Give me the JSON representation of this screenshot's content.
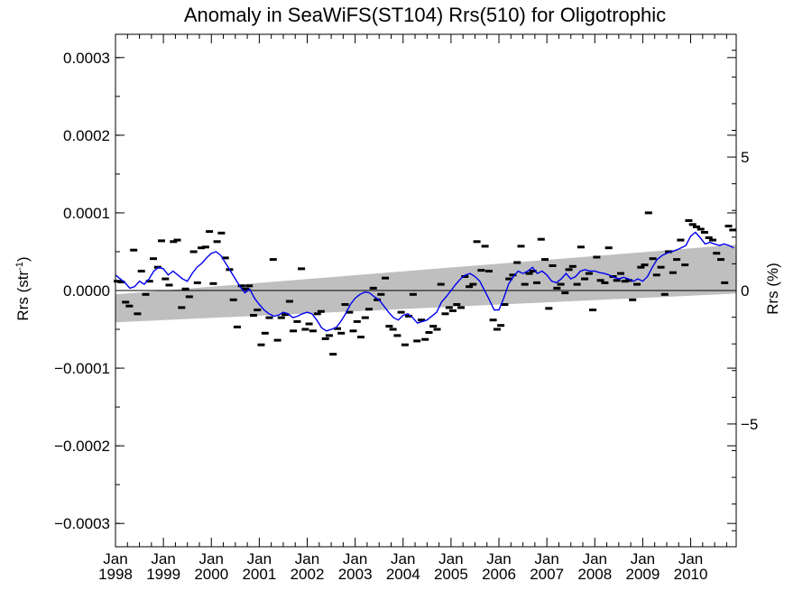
{
  "chart_data": {
    "type": "scatter",
    "title": "Anomaly in SeaWiFS(ST104) Rrs(510) for Oligotrophic",
    "ylabel_left": {
      "base": "Rrs (str",
      "sup": "-1",
      "tail": ")"
    },
    "ylabel_right": "Rrs (%)",
    "x_range": [
      1998.0,
      2010.95
    ],
    "y_range": [
      -0.00033,
      0.00033
    ],
    "y2_range": [
      -9.6,
      9.6
    ],
    "y_ticks": [
      {
        "value": 0.0003,
        "label": "0.0003"
      },
      {
        "value": 0.0002,
        "label": "0.0002"
      },
      {
        "value": 0.0001,
        "label": "0.0001"
      },
      {
        "value": 0.0,
        "label": "0.0000"
      },
      {
        "value": -0.0001,
        "label": "−0.0001"
      },
      {
        "value": -0.0002,
        "label": "−0.0002"
      },
      {
        "value": -0.0003,
        "label": "−0.0003"
      }
    ],
    "y2_ticks": [
      {
        "value": 5,
        "label": "5"
      },
      {
        "value": 0,
        "label": "0"
      },
      {
        "value": -5,
        "label": "−5"
      }
    ],
    "x_ticks": [
      {
        "value": 1998,
        "month": "Jan",
        "year": "1998"
      },
      {
        "value": 1999,
        "month": "Jan",
        "year": "1999"
      },
      {
        "value": 2000,
        "month": "Jan",
        "year": "2000"
      },
      {
        "value": 2001,
        "month": "Jan",
        "year": "2001"
      },
      {
        "value": 2002,
        "month": "Jan",
        "year": "2002"
      },
      {
        "value": 2003,
        "month": "Jan",
        "year": "2003"
      },
      {
        "value": 2004,
        "month": "Jan",
        "year": "2004"
      },
      {
        "value": 2005,
        "month": "Jan",
        "year": "2005"
      },
      {
        "value": 2006,
        "month": "Jan",
        "year": "2006"
      },
      {
        "value": 2007,
        "month": "Jan",
        "year": "2007"
      },
      {
        "value": 2008,
        "month": "Jan",
        "year": "2008"
      },
      {
        "value": 2009,
        "month": "Jan",
        "year": "2009"
      },
      {
        "value": 2010,
        "month": "Jan",
        "year": "2010"
      }
    ],
    "colors": {
      "points": "#000000",
      "running_mean": "#0000ee",
      "trend_band": "#bfbfbf",
      "zero_line": "#000000"
    },
    "trend_band": {
      "x": [
        1998.0,
        2010.95
      ],
      "lower": [
        -4.1e-05,
        -4e-06
      ],
      "upper": [
        -5e-06,
        5.9e-05
      ]
    },
    "points": [
      [
        1998.04,
        1.2e-05
      ],
      [
        1998.12,
        1.1e-05
      ],
      [
        1998.21,
        -1.5e-05
      ],
      [
        1998.29,
        -2e-05
      ],
      [
        1998.38,
        5.2e-05
      ],
      [
        1998.46,
        -3e-05
      ],
      [
        1998.54,
        2.5e-05
      ],
      [
        1998.63,
        -5e-06
      ],
      [
        1998.71,
        1.2e-05
      ],
      [
        1998.79,
        4.1e-05
      ],
      [
        1998.88,
        3e-05
      ],
      [
        1998.96,
        6.4e-05
      ],
      [
        1999.04,
        1.5e-05
      ],
      [
        1999.12,
        7e-06
      ],
      [
        1999.21,
        6.3e-05
      ],
      [
        1999.29,
        6.5e-05
      ],
      [
        1999.38,
        -2.2e-05
      ],
      [
        1999.46,
        2e-06
      ],
      [
        1999.54,
        -8e-06
      ],
      [
        1999.63,
        5e-05
      ],
      [
        1999.71,
        1e-05
      ],
      [
        1999.79,
        5.5e-05
      ],
      [
        1999.88,
        5.6e-05
      ],
      [
        1999.96,
        7.6e-05
      ],
      [
        2000.04,
        9e-06
      ],
      [
        2000.12,
        6.3e-05
      ],
      [
        2000.21,
        7.4e-05
      ],
      [
        2000.29,
        4.2e-05
      ],
      [
        2000.38,
        2.7e-05
      ],
      [
        2000.46,
        -1.2e-05
      ],
      [
        2000.54,
        -4.7e-05
      ],
      [
        2000.63,
        6e-06
      ],
      [
        2000.71,
        2e-06
      ],
      [
        2000.79,
        6e-06
      ],
      [
        2000.88,
        -3.2e-05
      ],
      [
        2000.96,
        -2.5e-05
      ],
      [
        2001.04,
        -7e-05
      ],
      [
        2001.12,
        -5.5e-05
      ],
      [
        2001.21,
        -3.5e-05
      ],
      [
        2001.29,
        4e-05
      ],
      [
        2001.38,
        -6.4e-05
      ],
      [
        2001.46,
        -3.5e-05
      ],
      [
        2001.54,
        -3.1e-05
      ],
      [
        2001.63,
        -1.4e-05
      ],
      [
        2001.71,
        -5.2e-05
      ],
      [
        2001.79,
        -4e-05
      ],
      [
        2001.88,
        2.8e-05
      ],
      [
        2001.96,
        -5e-05
      ],
      [
        2002.04,
        -4.3e-05
      ],
      [
        2002.12,
        -5.2e-05
      ],
      [
        2002.21,
        -3e-05
      ],
      [
        2002.29,
        -2.7e-05
      ],
      [
        2002.38,
        -6.2e-05
      ],
      [
        2002.46,
        -5.8e-05
      ],
      [
        2002.54,
        -8.2e-05
      ],
      [
        2002.63,
        -4.9e-05
      ],
      [
        2002.71,
        -5.5e-05
      ],
      [
        2002.79,
        -1.8e-05
      ],
      [
        2002.88,
        -2.8e-05
      ],
      [
        2002.96,
        -5.2e-05
      ],
      [
        2003.04,
        -4e-05
      ],
      [
        2003.12,
        -6e-05
      ],
      [
        2003.21,
        -3.5e-05
      ],
      [
        2003.29,
        -2.4e-05
      ],
      [
        2003.38,
        3e-06
      ],
      [
        2003.46,
        -1.2e-05
      ],
      [
        2003.54,
        -5e-06
      ],
      [
        2003.63,
        1.6e-05
      ],
      [
        2003.71,
        -4.6e-05
      ],
      [
        2003.79,
        -5e-05
      ],
      [
        2003.88,
        -5.8e-05
      ],
      [
        2003.96,
        -2.8e-05
      ],
      [
        2004.04,
        -7e-05
      ],
      [
        2004.12,
        -3.3e-05
      ],
      [
        2004.21,
        -5e-06
      ],
      [
        2004.29,
        -6.5e-05
      ],
      [
        2004.38,
        -3.8e-05
      ],
      [
        2004.46,
        -6.3e-05
      ],
      [
        2004.54,
        -5.4e-05
      ],
      [
        2004.63,
        -4.6e-05
      ],
      [
        2004.71,
        -5e-05
      ],
      [
        2004.79,
        8e-06
      ],
      [
        2004.88,
        -3e-05
      ],
      [
        2004.96,
        -2.2e-05
      ],
      [
        2005.04,
        -2.6e-05
      ],
      [
        2005.12,
        -1.8e-05
      ],
      [
        2005.21,
        -2.2e-05
      ],
      [
        2005.29,
        1.8e-05
      ],
      [
        2005.38,
        5e-06
      ],
      [
        2005.46,
        8e-06
      ],
      [
        2005.54,
        6.3e-05
      ],
      [
        2005.63,
        2.6e-05
      ],
      [
        2005.71,
        5.7e-05
      ],
      [
        2005.79,
        2.5e-05
      ],
      [
        2005.88,
        -3.8e-05
      ],
      [
        2005.96,
        -5e-05
      ],
      [
        2006.04,
        -4.5e-05
      ],
      [
        2006.12,
        -1.8e-05
      ],
      [
        2006.21,
        1.5e-05
      ],
      [
        2006.29,
        2e-05
      ],
      [
        2006.38,
        3.6e-05
      ],
      [
        2006.46,
        5.7e-05
      ],
      [
        2006.54,
        8e-06
      ],
      [
        2006.63,
        2.2e-05
      ],
      [
        2006.71,
        2.5e-05
      ],
      [
        2006.79,
        1e-05
      ],
      [
        2006.88,
        6.6e-05
      ],
      [
        2006.96,
        4e-05
      ],
      [
        2007.04,
        -2.3e-05
      ],
      [
        2007.12,
        3.2e-05
      ],
      [
        2007.21,
        3e-06
      ],
      [
        2007.29,
        8e-06
      ],
      [
        2007.38,
        -3e-06
      ],
      [
        2007.46,
        2.7e-05
      ],
      [
        2007.54,
        3.1e-05
      ],
      [
        2007.63,
        8e-06
      ],
      [
        2007.71,
        5.6e-05
      ],
      [
        2007.79,
        1.5e-05
      ],
      [
        2007.88,
        2.2e-05
      ],
      [
        2007.96,
        -2.5e-05
      ],
      [
        2008.04,
        4.3e-05
      ],
      [
        2008.12,
        1.3e-05
      ],
      [
        2008.21,
        1e-05
      ],
      [
        2008.29,
        5.5e-05
      ],
      [
        2008.38,
        1.8e-05
      ],
      [
        2008.46,
        1.3e-05
      ],
      [
        2008.54,
        2.2e-05
      ],
      [
        2008.63,
        1.2e-05
      ],
      [
        2008.71,
        1.3e-05
      ],
      [
        2008.79,
        -1.2e-05
      ],
      [
        2008.88,
        8e-06
      ],
      [
        2008.96,
        3e-05
      ],
      [
        2009.04,
        3.3e-05
      ],
      [
        2009.12,
        0.0001
      ],
      [
        2009.21,
        4.1e-05
      ],
      [
        2009.29,
        2e-05
      ],
      [
        2009.38,
        3e-05
      ],
      [
        2009.46,
        -5e-06
      ],
      [
        2009.54,
        5e-05
      ],
      [
        2009.63,
        2.3e-05
      ],
      [
        2009.71,
        4e-05
      ],
      [
        2009.79,
        6.5e-05
      ],
      [
        2009.88,
        3.3e-05
      ],
      [
        2009.96,
        9e-05
      ],
      [
        2010.04,
        8.5e-05
      ],
      [
        2010.12,
        8.2e-05
      ],
      [
        2010.21,
        7.9e-05
      ],
      [
        2010.29,
        7.5e-05
      ],
      [
        2010.38,
        6.8e-05
      ],
      [
        2010.46,
        6.5e-05
      ],
      [
        2010.54,
        4.8e-05
      ],
      [
        2010.63,
        4e-05
      ],
      [
        2010.71,
        1e-05
      ],
      [
        2010.79,
        8.3e-05
      ],
      [
        2010.88,
        7.8e-05
      ]
    ],
    "running_mean": [
      [
        1998.0,
        2e-05
      ],
      [
        1998.1,
        1.5e-05
      ],
      [
        1998.2,
        1e-05
      ],
      [
        1998.3,
        3e-06
      ],
      [
        1998.4,
        5e-06
      ],
      [
        1998.5,
        1.2e-05
      ],
      [
        1998.6,
        8e-06
      ],
      [
        1998.7,
        1.5e-05
      ],
      [
        1998.8,
        2.5e-05
      ],
      [
        1998.9,
        3e-05
      ],
      [
        1999.0,
        2.8e-05
      ],
      [
        1999.1,
        2e-05
      ],
      [
        1999.2,
        2.5e-05
      ],
      [
        1999.3,
        2e-05
      ],
      [
        1999.4,
        1.5e-05
      ],
      [
        1999.5,
        1.2e-05
      ],
      [
        1999.6,
        2.2e-05
      ],
      [
        1999.7,
        3e-05
      ],
      [
        1999.8,
        3.5e-05
      ],
      [
        1999.9,
        4.2e-05
      ],
      [
        2000.0,
        4.8e-05
      ],
      [
        2000.1,
        5e-05
      ],
      [
        2000.2,
        4.5e-05
      ],
      [
        2000.3,
        3.5e-05
      ],
      [
        2000.4,
        2.5e-05
      ],
      [
        2000.5,
        1.5e-05
      ],
      [
        2000.6,
        5e-06
      ],
      [
        2000.7,
        -3e-06
      ],
      [
        2000.8,
        2e-06
      ],
      [
        2000.9,
        -1e-05
      ],
      [
        2001.0,
        -1.8e-05
      ],
      [
        2001.1,
        -2.5e-05
      ],
      [
        2001.2,
        -3e-05
      ],
      [
        2001.3,
        -3.3e-05
      ],
      [
        2001.4,
        -3.2e-05
      ],
      [
        2001.5,
        -2.8e-05
      ],
      [
        2001.6,
        -3e-05
      ],
      [
        2001.7,
        -3.5e-05
      ],
      [
        2001.8,
        -3.3e-05
      ],
      [
        2001.9,
        -3e-05
      ],
      [
        2002.0,
        -2.8e-05
      ],
      [
        2002.1,
        -3e-05
      ],
      [
        2002.2,
        -3.8e-05
      ],
      [
        2002.3,
        -4.8e-05
      ],
      [
        2002.4,
        -5.2e-05
      ],
      [
        2002.5,
        -5e-05
      ],
      [
        2002.6,
        -4.8e-05
      ],
      [
        2002.7,
        -4e-05
      ],
      [
        2002.8,
        -3e-05
      ],
      [
        2002.9,
        -1.8e-05
      ],
      [
        2003.0,
        -1e-05
      ],
      [
        2003.1,
        -5e-06
      ],
      [
        2003.2,
        -2e-06
      ],
      [
        2003.3,
        -3e-06
      ],
      [
        2003.4,
        -8e-06
      ],
      [
        2003.5,
        -1.2e-05
      ],
      [
        2003.6,
        -2e-05
      ],
      [
        2003.7,
        -2.8e-05
      ],
      [
        2003.8,
        -3.5e-05
      ],
      [
        2003.9,
        -3.8e-05
      ],
      [
        2004.0,
        -3.2e-05
      ],
      [
        2004.1,
        -3e-05
      ],
      [
        2004.2,
        -3.5e-05
      ],
      [
        2004.3,
        -4.2e-05
      ],
      [
        2004.4,
        -4e-05
      ],
      [
        2004.5,
        -3.8e-05
      ],
      [
        2004.6,
        -3.3e-05
      ],
      [
        2004.7,
        -2.8e-05
      ],
      [
        2004.8,
        -1.5e-05
      ],
      [
        2004.9,
        -8e-06
      ],
      [
        2005.0,
        0.0
      ],
      [
        2005.1,
        8e-06
      ],
      [
        2005.2,
        1.5e-05
      ],
      [
        2005.3,
        2e-05
      ],
      [
        2005.4,
        2.2e-05
      ],
      [
        2005.5,
        1.8e-05
      ],
      [
        2005.6,
        1.2e-05
      ],
      [
        2005.7,
        0.0
      ],
      [
        2005.8,
        -1.2e-05
      ],
      [
        2005.9,
        -2.5e-05
      ],
      [
        2006.0,
        -2.5e-05
      ],
      [
        2006.1,
        -1e-05
      ],
      [
        2006.2,
        8e-06
      ],
      [
        2006.3,
        1.8e-05
      ],
      [
        2006.4,
        2.5e-05
      ],
      [
        2006.5,
        2.2e-05
      ],
      [
        2006.6,
        2.5e-05
      ],
      [
        2006.7,
        3e-05
      ],
      [
        2006.8,
        2.2e-05
      ],
      [
        2006.9,
        2.5e-05
      ],
      [
        2007.0,
        2e-05
      ],
      [
        2007.1,
        1.2e-05
      ],
      [
        2007.2,
        1e-05
      ],
      [
        2007.3,
        1.5e-05
      ],
      [
        2007.4,
        2.2e-05
      ],
      [
        2007.5,
        1.5e-05
      ],
      [
        2007.6,
        1.8e-05
      ],
      [
        2007.7,
        2.5e-05
      ],
      [
        2007.8,
        2.7e-05
      ],
      [
        2007.9,
        2.5e-05
      ],
      [
        2008.0,
        2.5e-05
      ],
      [
        2008.1,
        2.3e-05
      ],
      [
        2008.2,
        2.2e-05
      ],
      [
        2008.3,
        2e-05
      ],
      [
        2008.4,
        1.7e-05
      ],
      [
        2008.5,
        1.5e-05
      ],
      [
        2008.6,
        1.7e-05
      ],
      [
        2008.7,
        1.5e-05
      ],
      [
        2008.8,
        1.2e-05
      ],
      [
        2008.9,
        1.5e-05
      ],
      [
        2009.0,
        1.2e-05
      ],
      [
        2009.1,
        1.8e-05
      ],
      [
        2009.2,
        3e-05
      ],
      [
        2009.3,
        4e-05
      ],
      [
        2009.4,
        4.5e-05
      ],
      [
        2009.5,
        4.8e-05
      ],
      [
        2009.6,
        5e-05
      ],
      [
        2009.7,
        5.2e-05
      ],
      [
        2009.8,
        5.5e-05
      ],
      [
        2009.9,
        5.8e-05
      ],
      [
        2010.0,
        7e-05
      ],
      [
        2010.1,
        7.5e-05
      ],
      [
        2010.2,
        6.8e-05
      ],
      [
        2010.3,
        6e-05
      ],
      [
        2010.4,
        6.2e-05
      ],
      [
        2010.5,
        6e-05
      ],
      [
        2010.6,
        5.8e-05
      ],
      [
        2010.7,
        6e-05
      ],
      [
        2010.8,
        5.8e-05
      ],
      [
        2010.9,
        5.5e-05
      ]
    ]
  }
}
